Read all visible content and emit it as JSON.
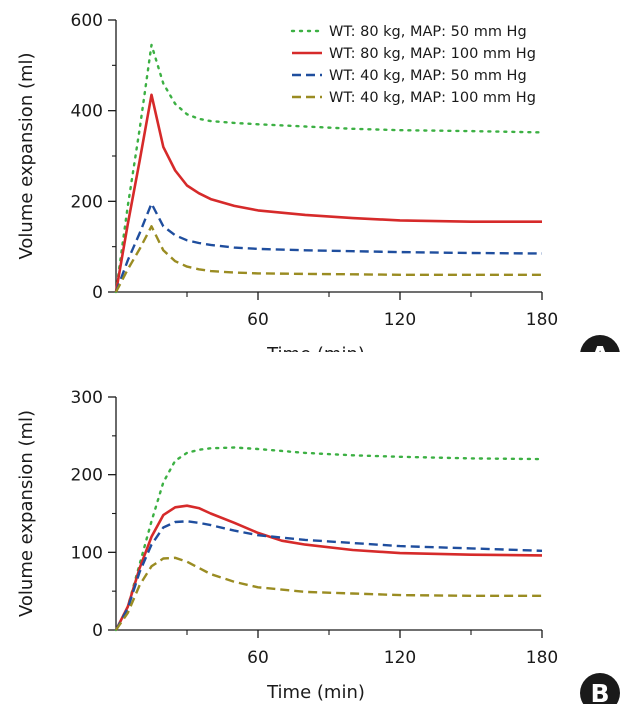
{
  "chart_data": [
    {
      "type": "line",
      "panel_label": "A",
      "xlabel": "Time (min)",
      "ylabel": "Volume expansion (ml)",
      "xlim": [
        0,
        180
      ],
      "ylim": [
        0,
        600
      ],
      "xticks": [
        60,
        120,
        180
      ],
      "yticks": [
        0,
        200,
        400,
        600
      ],
      "grid": false,
      "legend_position": "top-right",
      "series": [
        {
          "name": "WT: 80 kg, MAP: 50 mm Hg",
          "color": "#3cb043",
          "dash": "dotted",
          "x": [
            0,
            5,
            10,
            15,
            20,
            25,
            30,
            35,
            40,
            50,
            60,
            80,
            100,
            120,
            150,
            180
          ],
          "y": [
            0,
            190,
            360,
            545,
            460,
            415,
            392,
            382,
            377,
            373,
            370,
            365,
            360,
            357,
            355,
            352
          ]
        },
        {
          "name": "WT: 80 kg, MAP: 100 mm Hg",
          "color": "#d62a2a",
          "dash": "solid",
          "x": [
            0,
            5,
            10,
            15,
            20,
            25,
            30,
            35,
            40,
            50,
            60,
            80,
            100,
            120,
            150,
            180
          ],
          "y": [
            0,
            150,
            290,
            435,
            320,
            268,
            235,
            218,
            205,
            190,
            180,
            170,
            163,
            158,
            155,
            155
          ]
        },
        {
          "name": "WT: 40 kg, MAP: 50 mm Hg",
          "color": "#1f4e9e",
          "dash": "dashed",
          "x": [
            0,
            5,
            10,
            15,
            20,
            25,
            30,
            35,
            40,
            50,
            60,
            80,
            100,
            120,
            150,
            180
          ],
          "y": [
            0,
            70,
            130,
            195,
            145,
            125,
            114,
            108,
            104,
            98,
            95,
            92,
            90,
            88,
            86,
            85
          ]
        },
        {
          "name": "WT: 40 kg, MAP: 100 mm Hg",
          "color": "#9a8c22",
          "dash": "dashed",
          "x": [
            0,
            5,
            10,
            15,
            20,
            25,
            30,
            35,
            40,
            50,
            60,
            80,
            100,
            120,
            150,
            180
          ],
          "y": [
            0,
            50,
            95,
            145,
            92,
            68,
            56,
            50,
            46,
            43,
            41,
            40,
            39,
            38,
            38,
            38
          ]
        }
      ]
    },
    {
      "type": "line",
      "panel_label": "B",
      "xlabel": "Time (min)",
      "ylabel": "Volume expansion (ml)",
      "xlim": [
        0,
        180
      ],
      "ylim": [
        0,
        300
      ],
      "xticks": [
        60,
        120,
        180
      ],
      "yticks": [
        0,
        100,
        200,
        300
      ],
      "grid": false,
      "series": [
        {
          "name": "WT: 80 kg, MAP: 50 mm Hg",
          "color": "#3cb043",
          "dash": "dotted",
          "x": [
            0,
            5,
            10,
            15,
            20,
            25,
            30,
            35,
            40,
            50,
            60,
            80,
            100,
            120,
            150,
            180
          ],
          "y": [
            0,
            30,
            85,
            140,
            190,
            218,
            228,
            232,
            234,
            235,
            233,
            228,
            225,
            223,
            221,
            220
          ]
        },
        {
          "name": "WT: 80 kg, MAP: 100 mm Hg",
          "color": "#d62a2a",
          "dash": "solid",
          "x": [
            0,
            5,
            10,
            15,
            20,
            25,
            30,
            35,
            40,
            50,
            60,
            70,
            80,
            100,
            120,
            150,
            180
          ],
          "y": [
            0,
            30,
            80,
            120,
            148,
            158,
            160,
            157,
            150,
            138,
            125,
            115,
            110,
            103,
            99,
            97,
            96
          ]
        },
        {
          "name": "WT: 40 kg, MAP: 50 mm Hg",
          "color": "#1f4e9e",
          "dash": "dashed",
          "x": [
            0,
            5,
            10,
            15,
            20,
            25,
            30,
            35,
            40,
            50,
            60,
            80,
            100,
            120,
            150,
            180
          ],
          "y": [
            0,
            28,
            75,
            110,
            132,
            139,
            140,
            138,
            135,
            128,
            122,
            116,
            112,
            108,
            105,
            102
          ]
        },
        {
          "name": "WT: 40 kg, MAP: 100 mm Hg",
          "color": "#9a8c22",
          "dash": "dashed",
          "x": [
            0,
            5,
            10,
            15,
            20,
            25,
            30,
            35,
            40,
            50,
            60,
            80,
            100,
            120,
            150,
            180
          ],
          "y": [
            0,
            22,
            58,
            82,
            92,
            93,
            88,
            80,
            72,
            62,
            55,
            49,
            47,
            45,
            44,
            44
          ]
        }
      ]
    }
  ]
}
